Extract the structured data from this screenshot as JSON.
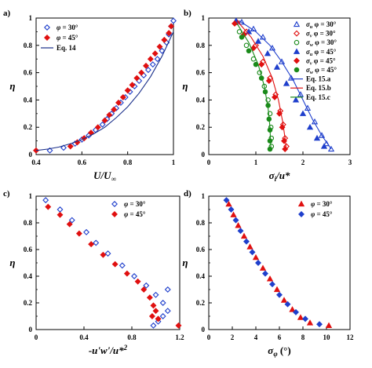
{
  "chart_data": [
    {
      "id": "a",
      "type": "scatter",
      "panel_label": "a)",
      "xlabel": "U/U∞",
      "ylabel": "η",
      "xlim": [
        0.4,
        1.0
      ],
      "ylim": [
        0,
        1
      ],
      "xticks": [
        0.4,
        0.6,
        0.8,
        1
      ],
      "xtick_labels": [
        "0.4",
        "0.6",
        "0.8",
        "1"
      ],
      "yticks": [
        0,
        0.2,
        0.4,
        0.6,
        0.8,
        1
      ],
      "ytick_labels": [
        "0",
        "0.2",
        "0.4",
        "0.6",
        "0.8",
        "1"
      ],
      "legend": [
        "φ = 30°",
        "φ = 45°",
        "Eq. 14"
      ],
      "legend_position": "top-left",
      "series": [
        {
          "name": "φ = 30°",
          "marker": "diamond-open",
          "color": "#1f3fcc",
          "points": [
            [
              0.46,
              0.03
            ],
            [
              0.52,
              0.05
            ],
            [
              0.57,
              0.08
            ],
            [
              0.6,
              0.11
            ],
            [
              0.63,
              0.14
            ],
            [
              0.66,
              0.18
            ],
            [
              0.69,
              0.22
            ],
            [
              0.71,
              0.26
            ],
            [
              0.73,
              0.3
            ],
            [
              0.75,
              0.34
            ],
            [
              0.77,
              0.38
            ],
            [
              0.79,
              0.42
            ],
            [
              0.81,
              0.46
            ],
            [
              0.83,
              0.5
            ],
            [
              0.85,
              0.54
            ],
            [
              0.87,
              0.58
            ],
            [
              0.89,
              0.62
            ],
            [
              0.91,
              0.66
            ],
            [
              0.93,
              0.7
            ],
            [
              0.95,
              0.76
            ],
            [
              0.97,
              0.82
            ],
            [
              0.98,
              0.88
            ],
            [
              0.99,
              0.94
            ],
            [
              1.0,
              0.98
            ]
          ]
        },
        {
          "name": "φ = 45°",
          "marker": "diamond-filled",
          "color": "#e01010",
          "points": [
            [
              0.4,
              0.03
            ],
            [
              0.55,
              0.06
            ],
            [
              0.58,
              0.09
            ],
            [
              0.61,
              0.12
            ],
            [
              0.64,
              0.16
            ],
            [
              0.67,
              0.2
            ],
            [
              0.7,
              0.25
            ],
            [
              0.72,
              0.29
            ],
            [
              0.74,
              0.33
            ],
            [
              0.76,
              0.38
            ],
            [
              0.78,
              0.42
            ],
            [
              0.8,
              0.47
            ],
            [
              0.82,
              0.51
            ],
            [
              0.84,
              0.56
            ],
            [
              0.86,
              0.6
            ],
            [
              0.88,
              0.65
            ],
            [
              0.9,
              0.7
            ],
            [
              0.92,
              0.74
            ],
            [
              0.94,
              0.79
            ],
            [
              0.96,
              0.84
            ],
            [
              0.98,
              0.89
            ],
            [
              0.99,
              0.94
            ]
          ]
        },
        {
          "name": "Eq. 14",
          "style": "line",
          "color": "#1a2f8a",
          "points": [
            [
              0.4,
              0.03
            ],
            [
              0.45,
              0.04
            ],
            [
              0.5,
              0.055
            ],
            [
              0.55,
              0.08
            ],
            [
              0.6,
              0.11
            ],
            [
              0.65,
              0.15
            ],
            [
              0.7,
              0.2
            ],
            [
              0.75,
              0.27
            ],
            [
              0.8,
              0.35
            ],
            [
              0.85,
              0.45
            ],
            [
              0.9,
              0.57
            ],
            [
              0.95,
              0.72
            ],
            [
              1.0,
              0.9
            ]
          ]
        }
      ]
    },
    {
      "id": "b",
      "type": "scatter",
      "panel_label": "b)",
      "xlabel": "σi/u*",
      "ylabel": "η",
      "xlim": [
        0,
        3
      ],
      "ylim": [
        0,
        1
      ],
      "xticks": [
        0,
        1,
        2,
        3
      ],
      "xtick_labels": [
        "0",
        "1",
        "2",
        "3"
      ],
      "yticks": [
        0,
        0.2,
        0.4,
        0.6,
        0.8,
        1
      ],
      "ytick_labels": [
        "0",
        "0.2",
        "0.4",
        "0.6",
        "0.8",
        "1"
      ],
      "legend": [
        "σu φ = 30°",
        "σv φ = 30°",
        "σw φ = 30°",
        "σu φ = 45°",
        "σv φ = 45°",
        "σw φ = 45°",
        "Eq. 15.a",
        "Eq. 15.b",
        "Eq. 15.c"
      ],
      "legend_position": "top-right",
      "series": [
        {
          "name": "σu φ = 30°",
          "marker": "triangle-open",
          "color": "#1f3fcc",
          "points": [
            [
              0.7,
              0.97
            ],
            [
              0.95,
              0.92
            ],
            [
              1.15,
              0.86
            ],
            [
              1.35,
              0.78
            ],
            [
              1.55,
              0.68
            ],
            [
              1.75,
              0.56
            ],
            [
              1.95,
              0.44
            ],
            [
              2.1,
              0.34
            ],
            [
              2.25,
              0.24
            ],
            [
              2.4,
              0.14
            ],
            [
              2.5,
              0.08
            ],
            [
              2.6,
              0.04
            ]
          ]
        },
        {
          "name": "σv φ = 30°",
          "marker": "diamond-open",
          "color": "#e01010",
          "points": [
            [
              0.6,
              0.97
            ],
            [
              0.8,
              0.9
            ],
            [
              1.0,
              0.8
            ],
            [
              1.15,
              0.68
            ],
            [
              1.3,
              0.56
            ],
            [
              1.42,
              0.44
            ],
            [
              1.52,
              0.32
            ],
            [
              1.58,
              0.22
            ],
            [
              1.62,
              0.12
            ],
            [
              1.65,
              0.06
            ]
          ]
        },
        {
          "name": "σw φ = 30°",
          "marker": "circle-open",
          "color": "#1a8a1a",
          "points": [
            [
              0.65,
              0.9
            ],
            [
              0.8,
              0.8
            ],
            [
              0.95,
              0.7
            ],
            [
              1.08,
              0.6
            ],
            [
              1.18,
              0.5
            ],
            [
              1.26,
              0.4
            ],
            [
              1.3,
              0.3
            ],
            [
              1.32,
              0.2
            ],
            [
              1.33,
              0.12
            ],
            [
              1.33,
              0.06
            ]
          ]
        },
        {
          "name": "σu φ = 45°",
          "marker": "triangle-filled",
          "color": "#1f3fcc",
          "points": [
            [
              0.58,
              0.98
            ],
            [
              0.85,
              0.9
            ],
            [
              1.05,
              0.83
            ],
            [
              1.25,
              0.74
            ],
            [
              1.45,
              0.64
            ],
            [
              1.65,
              0.52
            ],
            [
              1.85,
              0.4
            ],
            [
              2.0,
              0.3
            ],
            [
              2.15,
              0.2
            ],
            [
              2.3,
              0.12
            ],
            [
              2.45,
              0.06
            ]
          ]
        },
        {
          "name": "σv φ = 45°",
          "marker": "diamond-filled",
          "color": "#e01010",
          "points": [
            [
              0.55,
              0.96
            ],
            [
              0.75,
              0.88
            ],
            [
              0.95,
              0.78
            ],
            [
              1.12,
              0.66
            ],
            [
              1.28,
              0.54
            ],
            [
              1.4,
              0.42
            ],
            [
              1.5,
              0.3
            ],
            [
              1.56,
              0.2
            ],
            [
              1.6,
              0.1
            ],
            [
              1.62,
              0.04
            ]
          ]
        },
        {
          "name": "σw φ = 45°",
          "marker": "circle-filled",
          "color": "#1a8a1a",
          "points": [
            [
              0.7,
              0.86
            ],
            [
              0.85,
              0.76
            ],
            [
              1.0,
              0.66
            ],
            [
              1.12,
              0.56
            ],
            [
              1.2,
              0.46
            ],
            [
              1.26,
              0.36
            ],
            [
              1.28,
              0.26
            ],
            [
              1.3,
              0.18
            ],
            [
              1.3,
              0.1
            ],
            [
              1.3,
              0.04
            ]
          ]
        },
        {
          "name": "Eq. 15.a",
          "style": "line",
          "color": "#1f3fcc",
          "points": [
            [
              0.65,
              0.98
            ],
            [
              1.0,
              0.9
            ],
            [
              1.3,
              0.8
            ],
            [
              1.55,
              0.68
            ],
            [
              1.8,
              0.54
            ],
            [
              2.0,
              0.4
            ],
            [
              2.2,
              0.26
            ],
            [
              2.4,
              0.14
            ],
            [
              2.6,
              0.04
            ]
          ]
        },
        {
          "name": "Eq. 15.b",
          "style": "line",
          "color": "#e01010",
          "points": [
            [
              0.6,
              0.98
            ],
            [
              0.9,
              0.86
            ],
            [
              1.15,
              0.72
            ],
            [
              1.35,
              0.56
            ],
            [
              1.48,
              0.4
            ],
            [
              1.57,
              0.24
            ],
            [
              1.62,
              0.12
            ],
            [
              1.65,
              0.03
            ]
          ]
        },
        {
          "name": "Eq. 15.c",
          "style": "line",
          "color": "#1a8a1a",
          "points": [
            [
              0.6,
              0.96
            ],
            [
              0.85,
              0.82
            ],
            [
              1.05,
              0.66
            ],
            [
              1.18,
              0.5
            ],
            [
              1.26,
              0.34
            ],
            [
              1.3,
              0.2
            ],
            [
              1.32,
              0.03
            ]
          ]
        }
      ]
    },
    {
      "id": "c",
      "type": "scatter",
      "panel_label": "c)",
      "xlabel": "-u'w'/u*²",
      "ylabel": "η",
      "xlim": [
        0,
        1.2
      ],
      "ylim": [
        0,
        1
      ],
      "xticks": [
        0,
        0.4,
        0.8,
        1.2
      ],
      "xtick_labels": [
        "0",
        "0.4",
        "0.8",
        "1.2"
      ],
      "yticks": [
        0,
        0.2,
        0.4,
        0.6,
        0.8,
        1
      ],
      "ytick_labels": [
        "0",
        "0.2",
        "0.4",
        "0.6",
        "0.8",
        "1"
      ],
      "legend": [
        "φ = 30°",
        "φ = 45°"
      ],
      "legend_position": "top-right",
      "series": [
        {
          "name": "φ = 30°",
          "marker": "diamond-open",
          "color": "#1f3fcc",
          "points": [
            [
              0.08,
              0.97
            ],
            [
              0.2,
              0.9
            ],
            [
              0.3,
              0.82
            ],
            [
              0.42,
              0.73
            ],
            [
              0.5,
              0.65
            ],
            [
              0.6,
              0.57
            ],
            [
              0.72,
              0.48
            ],
            [
              0.82,
              0.4
            ],
            [
              0.92,
              0.33
            ],
            [
              1.0,
              0.26
            ],
            [
              1.06,
              0.2
            ],
            [
              1.1,
              0.14
            ],
            [
              1.06,
              0.1
            ],
            [
              1.02,
              0.06
            ],
            [
              0.98,
              0.03
            ],
            [
              1.1,
              0.3
            ]
          ]
        },
        {
          "name": "φ = 45°",
          "marker": "diamond-filled",
          "color": "#e01010",
          "points": [
            [
              0.1,
              0.92
            ],
            [
              0.2,
              0.86
            ],
            [
              0.28,
              0.79
            ],
            [
              0.36,
              0.72
            ],
            [
              0.46,
              0.64
            ],
            [
              0.56,
              0.56
            ],
            [
              0.66,
              0.49
            ],
            [
              0.76,
              0.42
            ],
            [
              0.85,
              0.36
            ],
            [
              0.9,
              0.3
            ],
            [
              0.95,
              0.24
            ],
            [
              0.98,
              0.18
            ],
            [
              1.0,
              0.14
            ],
            [
              0.97,
              0.1
            ],
            [
              1.02,
              0.08
            ],
            [
              1.19,
              0.03
            ]
          ]
        }
      ]
    },
    {
      "id": "d",
      "type": "scatter",
      "panel_label": "d)",
      "xlabel": "σφ (°)",
      "ylabel": "η",
      "xlim": [
        0,
        12
      ],
      "ylim": [
        0,
        1
      ],
      "xticks": [
        0,
        2,
        4,
        6,
        8,
        10,
        12
      ],
      "xtick_labels": [
        "0",
        "2",
        "4",
        "6",
        "8",
        "10",
        "12"
      ],
      "yticks": [
        0,
        0.2,
        0.4,
        0.6,
        0.8,
        1
      ],
      "ytick_labels": [
        "0",
        "0.2",
        "0.4",
        "0.6",
        "0.8",
        "1"
      ],
      "legend": [
        "φ = 30°",
        "φ = 45°"
      ],
      "legend_position": "top-right",
      "series": [
        {
          "name": "φ = 30°",
          "marker": "triangle-filled",
          "color": "#e01010",
          "points": [
            [
              1.7,
              0.94
            ],
            [
              2.1,
              0.86
            ],
            [
              2.5,
              0.78
            ],
            [
              3.0,
              0.7
            ],
            [
              3.5,
              0.62
            ],
            [
              4.0,
              0.54
            ],
            [
              4.6,
              0.46
            ],
            [
              5.2,
              0.38
            ],
            [
              5.8,
              0.3
            ],
            [
              6.4,
              0.22
            ],
            [
              7.1,
              0.15
            ],
            [
              7.8,
              0.09
            ],
            [
              8.6,
              0.05
            ],
            [
              10.2,
              0.03
            ]
          ]
        },
        {
          "name": "φ = 45°",
          "marker": "diamond-filled",
          "color": "#1f3fcc",
          "points": [
            [
              1.5,
              0.97
            ],
            [
              1.9,
              0.9
            ],
            [
              2.3,
              0.82
            ],
            [
              2.7,
              0.74
            ],
            [
              3.2,
              0.66
            ],
            [
              3.7,
              0.58
            ],
            [
              4.2,
              0.5
            ],
            [
              4.8,
              0.42
            ],
            [
              5.4,
              0.34
            ],
            [
              6.0,
              0.26
            ],
            [
              6.7,
              0.19
            ],
            [
              7.4,
              0.13
            ],
            [
              8.2,
              0.08
            ],
            [
              9.4,
              0.04
            ]
          ]
        }
      ]
    }
  ]
}
